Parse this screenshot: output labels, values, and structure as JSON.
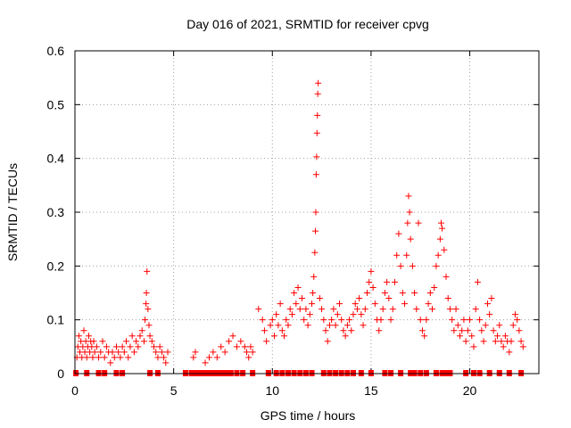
{
  "chart_data": {
    "type": "scatter",
    "title": "Day 016 of 2021, SRMTID for receiver cpvg",
    "xlabel": "GPS time / hours",
    "ylabel": "SRMTID / TECUs",
    "xlim": [
      0,
      23.5
    ],
    "ylim": [
      0,
      0.6
    ],
    "x_ticks": [
      0,
      5,
      10,
      15,
      20
    ],
    "x_tick_labels": [
      "0",
      "5",
      "10",
      "15",
      "20"
    ],
    "y_ticks": [
      0,
      0.1,
      0.2,
      0.3,
      0.4,
      0.5,
      0.6
    ],
    "y_tick_labels": [
      "0",
      "0.1",
      "0.2",
      "0.3",
      "0.4",
      "0.5",
      "0.6"
    ],
    "grid": true,
    "marker": "plus",
    "color": "#ff0000",
    "series": [
      {
        "name": "SRMTID",
        "points": [
          [
            0.1,
            0.03
          ],
          [
            0.15,
            0.05
          ],
          [
            0.2,
            0.07
          ],
          [
            0.25,
            0.04
          ],
          [
            0.3,
            0.06
          ],
          [
            0.35,
            0.03
          ],
          [
            0.4,
            0.05
          ],
          [
            0.45,
            0.08
          ],
          [
            0.5,
            0.04
          ],
          [
            0.55,
            0.06
          ],
          [
            0.6,
            0.03
          ],
          [
            0.65,
            0.05
          ],
          [
            0.7,
            0.07
          ],
          [
            0.75,
            0.04
          ],
          [
            0.8,
            0.06
          ],
          [
            0.85,
            0.05
          ],
          [
            0.9,
            0.03
          ],
          [
            0.95,
            0.06
          ],
          [
            1.0,
            0.04
          ],
          [
            1.1,
            0.05
          ],
          [
            1.2,
            0.03
          ],
          [
            1.3,
            0.04
          ],
          [
            1.4,
            0.06
          ],
          [
            1.5,
            0.03
          ],
          [
            1.6,
            0.05
          ],
          [
            1.7,
            0.04
          ],
          [
            1.8,
            0.02
          ],
          [
            1.9,
            0.04
          ],
          [
            2.0,
            0.03
          ],
          [
            2.1,
            0.05
          ],
          [
            2.2,
            0.04
          ],
          [
            2.3,
            0.03
          ],
          [
            2.4,
            0.05
          ],
          [
            2.5,
            0.04
          ],
          [
            2.6,
            0.06
          ],
          [
            2.7,
            0.03
          ],
          [
            2.8,
            0.05
          ],
          [
            2.9,
            0.07
          ],
          [
            3.0,
            0.04
          ],
          [
            3.1,
            0.06
          ],
          [
            3.2,
            0.05
          ],
          [
            3.3,
            0.07
          ],
          [
            3.4,
            0.08
          ],
          [
            3.5,
            0.06
          ],
          [
            3.55,
            0.1
          ],
          [
            3.6,
            0.13
          ],
          [
            3.62,
            0.15
          ],
          [
            3.65,
            0.19
          ],
          [
            3.7,
            0.12
          ],
          [
            3.75,
            0.09
          ],
          [
            3.8,
            0.07
          ],
          [
            3.9,
            0.06
          ],
          [
            4.0,
            0.05
          ],
          [
            4.1,
            0.04
          ],
          [
            4.2,
            0.03
          ],
          [
            4.3,
            0.05
          ],
          [
            4.4,
            0.04
          ],
          [
            4.5,
            0.03
          ],
          [
            4.6,
            0.02
          ],
          [
            4.7,
            0.04
          ],
          [
            6.0,
            0.03
          ],
          [
            6.1,
            0.04
          ],
          [
            6.6,
            0.02
          ],
          [
            6.8,
            0.03
          ],
          [
            7.0,
            0.04
          ],
          [
            7.2,
            0.03
          ],
          [
            7.4,
            0.05
          ],
          [
            7.6,
            0.04
          ],
          [
            7.8,
            0.06
          ],
          [
            8.0,
            0.07
          ],
          [
            8.2,
            0.05
          ],
          [
            8.4,
            0.06
          ],
          [
            8.6,
            0.05
          ],
          [
            8.7,
            0.04
          ],
          [
            8.8,
            0.03
          ],
          [
            8.9,
            0.05
          ],
          [
            9.0,
            0.04
          ],
          [
            9.3,
            0.12
          ],
          [
            9.5,
            0.1
          ],
          [
            9.6,
            0.08
          ],
          [
            9.7,
            0.06
          ],
          [
            9.9,
            0.09
          ],
          [
            10.0,
            0.1
          ],
          [
            10.1,
            0.07
          ],
          [
            10.2,
            0.11
          ],
          [
            10.3,
            0.09
          ],
          [
            10.4,
            0.13
          ],
          [
            10.5,
            0.08
          ],
          [
            10.6,
            0.07
          ],
          [
            10.7,
            0.1
          ],
          [
            10.8,
            0.09
          ],
          [
            10.9,
            0.12
          ],
          [
            11.0,
            0.11
          ],
          [
            11.1,
            0.15
          ],
          [
            11.2,
            0.13
          ],
          [
            11.3,
            0.16
          ],
          [
            11.4,
            0.12
          ],
          [
            11.5,
            0.14
          ],
          [
            11.6,
            0.1
          ],
          [
            11.7,
            0.12
          ],
          [
            11.8,
            0.09
          ],
          [
            11.9,
            0.11
          ],
          [
            12.0,
            0.13
          ],
          [
            12.05,
            0.15
          ],
          [
            12.1,
            0.18
          ],
          [
            12.15,
            0.225
          ],
          [
            12.18,
            0.265
          ],
          [
            12.2,
            0.3
          ],
          [
            12.22,
            0.37
          ],
          [
            12.24,
            0.403
          ],
          [
            12.26,
            0.447
          ],
          [
            12.28,
            0.48
          ],
          [
            12.3,
            0.52
          ],
          [
            12.32,
            0.54
          ],
          [
            12.4,
            0.14
          ],
          [
            12.5,
            0.12
          ],
          [
            12.6,
            0.1
          ],
          [
            12.7,
            0.08
          ],
          [
            12.8,
            0.06
          ],
          [
            12.9,
            0.09
          ],
          [
            13.0,
            0.1
          ],
          [
            13.1,
            0.12
          ],
          [
            13.2,
            0.09
          ],
          [
            13.3,
            0.11
          ],
          [
            13.4,
            0.13
          ],
          [
            13.5,
            0.1
          ],
          [
            13.6,
            0.08
          ],
          [
            13.7,
            0.07
          ],
          [
            13.8,
            0.09
          ],
          [
            13.9,
            0.1
          ],
          [
            14.0,
            0.08
          ],
          [
            14.1,
            0.11
          ],
          [
            14.2,
            0.13
          ],
          [
            14.3,
            0.12
          ],
          [
            14.4,
            0.14
          ],
          [
            14.5,
            0.11
          ],
          [
            14.6,
            0.09
          ],
          [
            14.7,
            0.12
          ],
          [
            14.8,
            0.15
          ],
          [
            14.9,
            0.17
          ],
          [
            15.0,
            0.19
          ],
          [
            15.1,
            0.16
          ],
          [
            15.2,
            0.13
          ],
          [
            15.3,
            0.1
          ],
          [
            15.4,
            0.08
          ],
          [
            15.5,
            0.1
          ],
          [
            15.6,
            0.12
          ],
          [
            15.7,
            0.15
          ],
          [
            15.8,
            0.17
          ],
          [
            15.9,
            0.14
          ],
          [
            16.0,
            0.1
          ],
          [
            16.1,
            0.12
          ],
          [
            16.2,
            0.17
          ],
          [
            16.3,
            0.22
          ],
          [
            16.4,
            0.26
          ],
          [
            16.5,
            0.2
          ],
          [
            16.6,
            0.15
          ],
          [
            16.7,
            0.13
          ],
          [
            16.8,
            0.22
          ],
          [
            16.85,
            0.28
          ],
          [
            16.9,
            0.33
          ],
          [
            16.95,
            0.3
          ],
          [
            17.0,
            0.25
          ],
          [
            17.1,
            0.2
          ],
          [
            17.2,
            0.15
          ],
          [
            17.3,
            0.12
          ],
          [
            17.4,
            0.28
          ],
          [
            17.5,
            0.1
          ],
          [
            17.6,
            0.08
          ],
          [
            17.7,
            0.07
          ],
          [
            17.8,
            0.1
          ],
          [
            17.9,
            0.13
          ],
          [
            18.0,
            0.15
          ],
          [
            18.1,
            0.12
          ],
          [
            18.2,
            0.16
          ],
          [
            18.3,
            0.2
          ],
          [
            18.4,
            0.22
          ],
          [
            18.5,
            0.25
          ],
          [
            18.55,
            0.28
          ],
          [
            18.6,
            0.27
          ],
          [
            18.7,
            0.23
          ],
          [
            18.8,
            0.18
          ],
          [
            18.9,
            0.14
          ],
          [
            19.0,
            0.12
          ],
          [
            19.1,
            0.1
          ],
          [
            19.2,
            0.08
          ],
          [
            19.3,
            0.12
          ],
          [
            19.4,
            0.09
          ],
          [
            19.5,
            0.07
          ],
          [
            19.6,
            0.08
          ],
          [
            19.7,
            0.1
          ],
          [
            19.8,
            0.06
          ],
          [
            19.9,
            0.08
          ],
          [
            20.0,
            0.1
          ],
          [
            20.1,
            0.07
          ],
          [
            20.2,
            0.05
          ],
          [
            20.3,
            0.12
          ],
          [
            20.4,
            0.17
          ],
          [
            20.5,
            0.1
          ],
          [
            20.6,
            0.08
          ],
          [
            20.7,
            0.06
          ],
          [
            20.8,
            0.09
          ],
          [
            20.9,
            0.13
          ],
          [
            21.0,
            0.11
          ],
          [
            21.1,
            0.14
          ],
          [
            21.2,
            0.08
          ],
          [
            21.3,
            0.06
          ],
          [
            21.4,
            0.07
          ],
          [
            21.5,
            0.09
          ],
          [
            21.6,
            0.06
          ],
          [
            21.7,
            0.05
          ],
          [
            21.8,
            0.07
          ],
          [
            21.9,
            0.06
          ],
          [
            22.0,
            0.04
          ],
          [
            22.1,
            0.06
          ],
          [
            22.2,
            0.09
          ],
          [
            22.3,
            0.11
          ],
          [
            22.4,
            0.1
          ],
          [
            22.5,
            0.08
          ],
          [
            22.6,
            0.06
          ],
          [
            22.7,
            0.05
          ]
        ]
      }
    ],
    "gaps": [
      0.05,
      0.6,
      1.2,
      1.5,
      2.1,
      2.4,
      3.8,
      4.2,
      5.6,
      5.9,
      6.1,
      6.3,
      6.5,
      6.7,
      6.9,
      7.1,
      7.3,
      7.5,
      7.7,
      7.9,
      8.2,
      8.5,
      9.0,
      9.8,
      10.2,
      10.5,
      10.8,
      11.1,
      11.4,
      11.7,
      12.0,
      12.6,
      12.9,
      13.2,
      13.5,
      13.8,
      14.1,
      14.5,
      15.0,
      15.7,
      16.0,
      16.5,
      17.0,
      17.2,
      17.5,
      17.8,
      18.3,
      18.6,
      18.8,
      19.0,
      19.8,
      20.2,
      20.5,
      21.0,
      21.5,
      22.0,
      22.6
    ]
  }
}
